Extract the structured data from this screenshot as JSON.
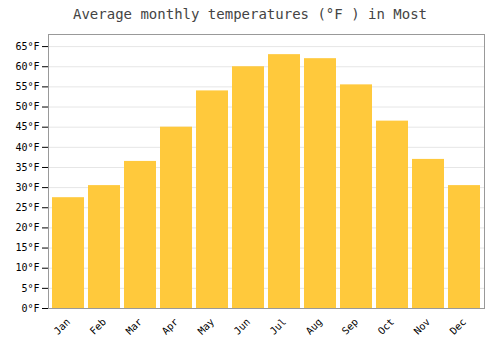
{
  "chart_data": {
    "type": "bar",
    "title": "Average monthly temperatures (°F ) in Most",
    "categories": [
      "Jan",
      "Feb",
      "Mar",
      "Apr",
      "May",
      "Jun",
      "Jul",
      "Aug",
      "Sep",
      "Oct",
      "Nov",
      "Dec"
    ],
    "values": [
      27.5,
      30.5,
      36.5,
      45.0,
      54.0,
      60.0,
      63.0,
      62.0,
      55.5,
      46.5,
      37.0,
      30.5
    ],
    "color": "#FFC93C",
    "ylim": [
      0,
      68
    ],
    "yticks": [
      {
        "value": 0,
        "label": "0°F"
      },
      {
        "value": 5,
        "label": "5°F"
      },
      {
        "value": 10,
        "label": "10°F"
      },
      {
        "value": 15,
        "label": "15°F"
      },
      {
        "value": 20,
        "label": "20°F"
      },
      {
        "value": 25,
        "label": "25°F"
      },
      {
        "value": 30,
        "label": "30°F"
      },
      {
        "value": 35,
        "label": "35°F"
      },
      {
        "value": 40,
        "label": "40°F"
      },
      {
        "value": 45,
        "label": "45°F"
      },
      {
        "value": 50,
        "label": "50°F"
      },
      {
        "value": 55,
        "label": "55°F"
      },
      {
        "value": 60,
        "label": "60°F"
      },
      {
        "value": 65,
        "label": "65°F"
      }
    ],
    "grid": true
  }
}
